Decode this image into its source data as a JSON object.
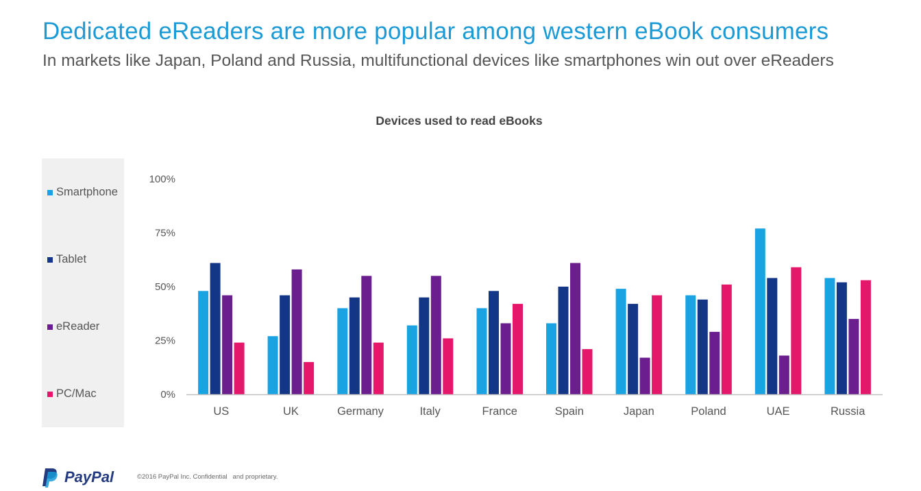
{
  "header": {
    "title": "Dedicated eReaders are more popular among western eBook consumers",
    "subtitle": "In markets like Japan, Poland and Russia, multifunctional devices like smartphones win out over eReaders"
  },
  "footer": {
    "logo_text": "PayPal",
    "copyright": "©2016 PayPal Inc. Confidential   and proprietary."
  },
  "colors": {
    "Smartphone": "#1aa3e2",
    "Tablet": "#143686",
    "eReader": "#6b1f8e",
    "PC/Mac": "#e4176b",
    "title": "#1b9ad6",
    "axis": "#bfbfbf"
  },
  "chart_data": {
    "type": "bar",
    "title": "Devices used to read eBooks",
    "xlabel": "",
    "ylabel": "",
    "ylim": [
      0,
      100
    ],
    "yticks": [
      "0%",
      "25%",
      "50%",
      "75%",
      "100%"
    ],
    "grid": false,
    "legend": "left",
    "categories": [
      "US",
      "UK",
      "Germany",
      "Italy",
      "France",
      "Spain",
      "Japan",
      "Poland",
      "UAE",
      "Russia"
    ],
    "series": [
      {
        "name": "Smartphone",
        "values": [
          48,
          27,
          40,
          32,
          40,
          33,
          49,
          46,
          77,
          54
        ]
      },
      {
        "name": "Tablet",
        "values": [
          61,
          46,
          45,
          45,
          48,
          50,
          42,
          44,
          54,
          52
        ]
      },
      {
        "name": "eReader",
        "values": [
          46,
          58,
          55,
          55,
          33,
          61,
          17,
          29,
          18,
          35
        ]
      },
      {
        "name": "PC/Mac",
        "values": [
          24,
          15,
          24,
          26,
          42,
          21,
          46,
          51,
          59,
          53
        ]
      }
    ]
  }
}
